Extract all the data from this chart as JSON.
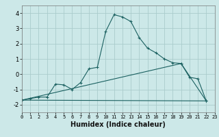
{
  "xlabel": "Humidex (Indice chaleur)",
  "bg_color": "#cce8e8",
  "grid_color": "#aacccc",
  "line_color": "#1a6060",
  "xlim": [
    0,
    23
  ],
  "ylim": [
    -2.5,
    4.5
  ],
  "xticks": [
    0,
    1,
    2,
    3,
    4,
    5,
    6,
    7,
    8,
    9,
    10,
    11,
    12,
    13,
    14,
    15,
    16,
    17,
    18,
    19,
    20,
    21,
    22,
    23
  ],
  "yticks": [
    -2,
    -1,
    0,
    1,
    2,
    3,
    4
  ],
  "line1_x": [
    0,
    1,
    2,
    3,
    4,
    5,
    6,
    7,
    8,
    9,
    10,
    11,
    12,
    13,
    14,
    15,
    16,
    17,
    18,
    19,
    20,
    21,
    22
  ],
  "line1_y": [
    -1.7,
    -1.6,
    -1.5,
    -1.5,
    -0.65,
    -0.7,
    -1.0,
    -0.55,
    0.35,
    0.45,
    2.8,
    3.9,
    3.75,
    3.45,
    2.4,
    1.7,
    1.4,
    1.0,
    0.75,
    0.7,
    -0.2,
    -0.3,
    -1.75
  ],
  "line2_x": [
    0,
    22
  ],
  "line2_y": [
    -1.7,
    -1.75
  ],
  "line3_x": [
    0,
    19,
    22
  ],
  "line3_y": [
    -1.7,
    0.7,
    -1.75
  ]
}
